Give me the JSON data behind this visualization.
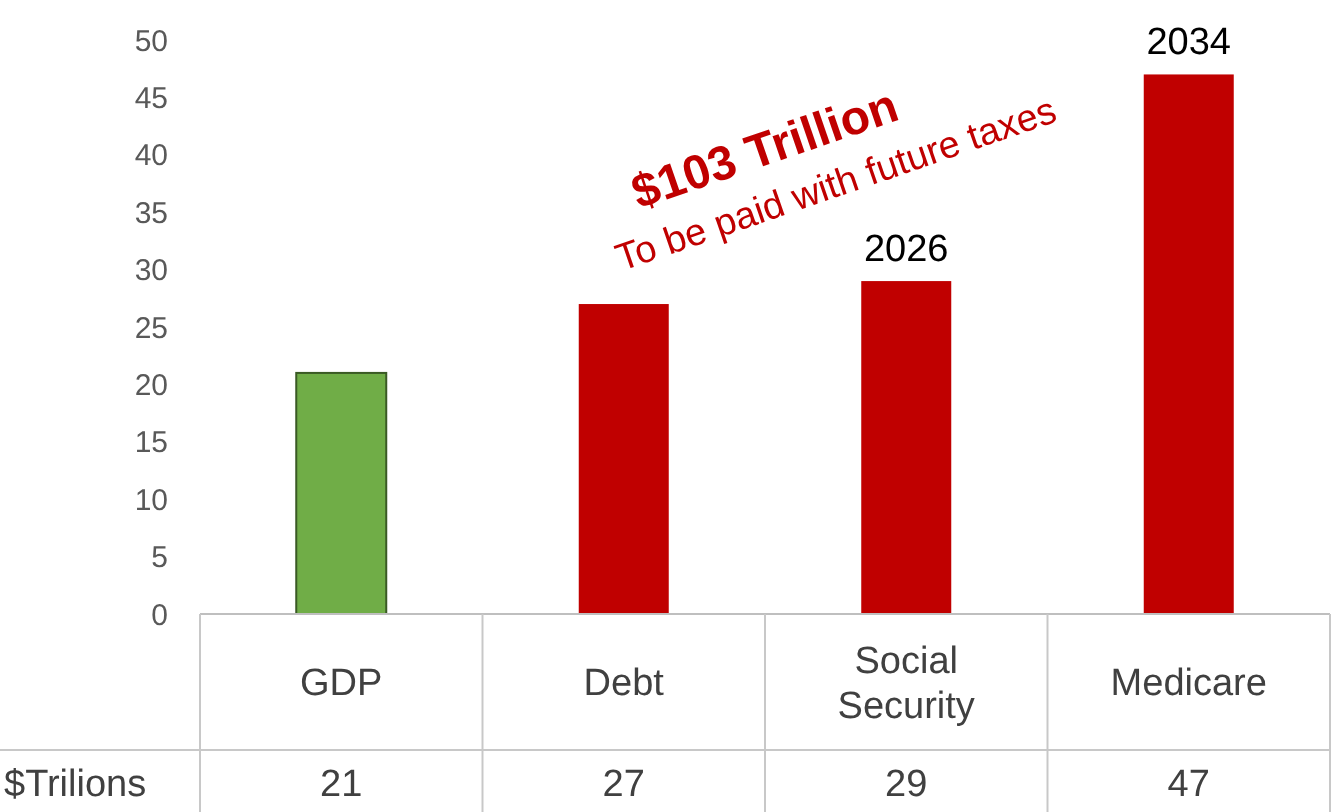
{
  "chart_data": {
    "type": "bar",
    "categories": [
      "GDP",
      "Debt",
      "Social Security",
      "Medicare"
    ],
    "values": [
      21,
      27,
      29,
      47
    ],
    "colors": [
      "#70ad47",
      "#c00000",
      "#c00000",
      "#c00000"
    ],
    "ylim": [
      0,
      50
    ],
    "yticks": [
      0,
      5,
      10,
      15,
      20,
      25,
      30,
      35,
      40,
      45,
      50
    ],
    "data_labels": true,
    "annotations": [
      "$103 Trillion",
      "To be paid with future taxes",
      {
        "text": "2026",
        "x": "Social Security",
        "y": 29
      },
      {
        "text": "2034",
        "x": "Medicare",
        "y": 47
      },
      "$Trilions"
    ]
  }
}
